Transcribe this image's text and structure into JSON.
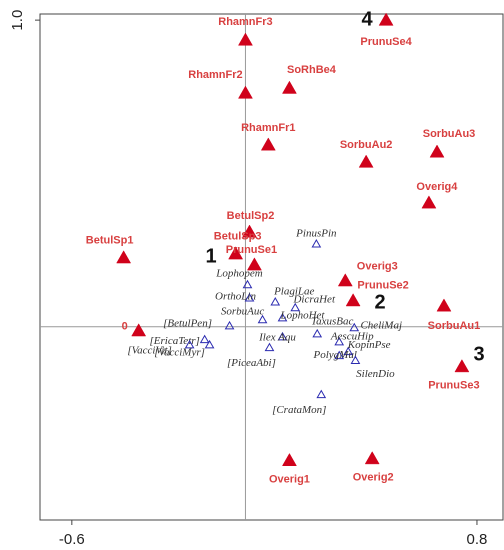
{
  "chart_data": {
    "type": "scatter",
    "xlim": [
      -0.71,
      0.89
    ],
    "ylim": [
      -0.63,
      1.02
    ],
    "xticks": [
      -0.6,
      0.8
    ],
    "yticks": [
      {
        "value": 1.0,
        "label": "1.0"
      }
    ],
    "series": [
      {
        "color": "#d0021b",
        "marker": "filled",
        "points": [
          {
            "label": "RhamnFr3",
            "x": 0,
            "y": 0.935
          },
          {
            "label": "PrunuSe4",
            "x": 0.486,
            "y": 1.0
          },
          {
            "label": "RhamnFr2",
            "x": 0,
            "y": 0.762
          },
          {
            "label": "SoRhBe4",
            "x": 0.152,
            "y": 0.778
          },
          {
            "label": "RhamnFr1",
            "x": 0.079,
            "y": 0.593
          },
          {
            "label": "SorbuAu2",
            "x": 0.417,
            "y": 0.537
          },
          {
            "label": "SorbuAu3",
            "x": 0.662,
            "y": 0.57
          },
          {
            "label": "Overig4",
            "x": 0.634,
            "y": 0.404
          },
          {
            "label": "BetulSp1",
            "x": -0.421,
            "y": 0.225
          },
          {
            "label": "BetulSp2",
            "x": 0.014,
            "y": 0.309
          },
          {
            "label": "BetulSp3",
            "x": -0.034,
            "y": 0.238
          },
          {
            "label": "PrunuSe1",
            "x": 0.031,
            "y": 0.202
          },
          {
            "label": "Overig3",
            "x": 0.345,
            "y": 0.15
          },
          {
            "label": "PrunuSe2",
            "x": 0.372,
            "y": 0.085
          },
          {
            "label": "SorbuAu1",
            "x": 0.686,
            "y": 0.068
          },
          {
            "label": "0",
            "x": -0.369,
            "y": -0.013
          },
          {
            "label": "PrunuSe3",
            "x": 0.748,
            "y": -0.13
          },
          {
            "label": "Overig1",
            "x": 0.152,
            "y": -0.436
          },
          {
            "label": "Overig2",
            "x": 0.438,
            "y": -0.43
          }
        ]
      },
      {
        "color": "#2b2bb0",
        "marker": "open",
        "points": [
          {
            "label": "PinusPin",
            "x": 0.245,
            "y": 0.27
          },
          {
            "label": "Lophopem",
            "x": 0.007,
            "y": 0.137
          },
          {
            "label": "OrthoLin",
            "x": 0.014,
            "y": 0.094
          },
          {
            "label": "PlagiLae",
            "x": 0.103,
            "y": 0.081
          },
          {
            "label": "DicraHet",
            "x": 0.172,
            "y": 0.062
          },
          {
            "label": "SorbuAuc",
            "x": 0.059,
            "y": 0.023
          },
          {
            "label": "LophoHet",
            "x": 0.128,
            "y": 0.029
          },
          {
            "label": "TaxusBac",
            "x": 0.248,
            "y": -0.023
          },
          {
            "label": "CheliMaj",
            "x": 0.376,
            "y": -0.003
          },
          {
            "label": "AescuHip",
            "x": 0.324,
            "y": -0.049
          },
          {
            "label": "KopinPse",
            "x": 0.355,
            "y": -0.081
          },
          {
            "label": "PolygMul",
            "x": 0.324,
            "y": -0.094
          },
          {
            "label": "SilenDio",
            "x": 0.38,
            "y": -0.11
          },
          {
            "label": "[BetulPen]",
            "x": -0.055,
            "y": 0.003
          },
          {
            "label": "Ilex Aqu",
            "x": 0.128,
            "y": -0.033
          },
          {
            "label": "[PiceaAbi]",
            "x": 0.083,
            "y": -0.068
          },
          {
            "label": "[CrataMon]",
            "x": 0.262,
            "y": -0.221
          },
          {
            "label": "[EricaTetr]",
            "x": -0.141,
            "y": -0.042
          },
          {
            "label": "[VacciVit]",
            "x": -0.193,
            "y": -0.059
          },
          {
            "label": "[VacciMyr]",
            "x": -0.124,
            "y": -0.059
          }
        ]
      }
    ],
    "annotations": [
      "1",
      "2",
      "3",
      "4"
    ]
  }
}
